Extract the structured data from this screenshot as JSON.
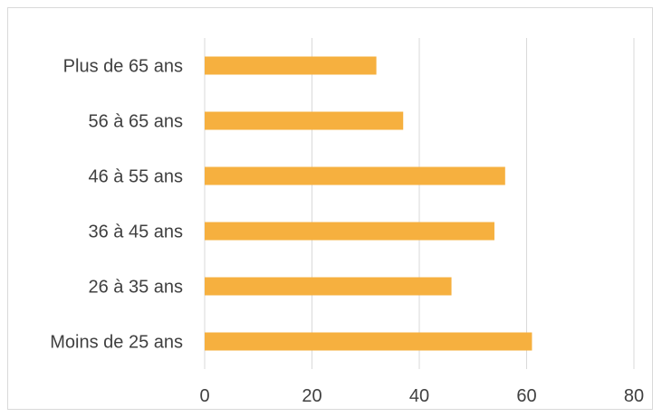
{
  "chart_data": {
    "type": "bar",
    "orientation": "horizontal",
    "categories": [
      "Moins de 25 ans",
      "26 à 35 ans",
      "36 à 45 ans",
      "46 à 55 ans",
      "56 à 65 ans",
      "Plus de 65 ans"
    ],
    "values": [
      61,
      46,
      54,
      56,
      37,
      32
    ],
    "title": "",
    "xlabel": "",
    "ylabel": "",
    "xlim": [
      0,
      80
    ],
    "x_ticks": [
      "0",
      "20",
      "40",
      "60",
      "80"
    ],
    "grid": "vertical",
    "legend": "none",
    "colors": {
      "bar": "#f6b03f",
      "grid": "#d9d9d9",
      "text": "#404040"
    }
  }
}
